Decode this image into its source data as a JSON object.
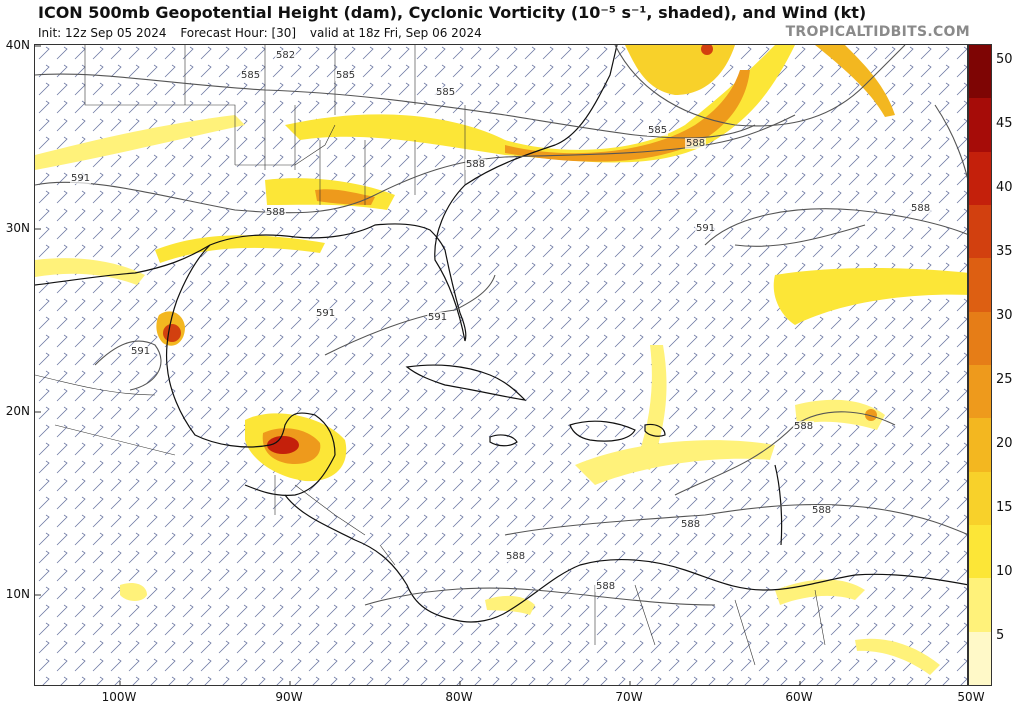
{
  "header": {
    "title": "ICON 500mb Geopotential Height (dam), Cyclonic Vorticity (10⁻⁵ s⁻¹, shaded), and Wind (kt)",
    "init": "Init: 12z Sep 05 2024",
    "forecast_hour": "Forecast Hour: [30]",
    "valid": "valid at 18z Fri, Sep 06 2024",
    "brand": "TROPICALTIDBITS.COM"
  },
  "axes": {
    "lat_labels": [
      "40N",
      "30N",
      "20N",
      "10N"
    ],
    "lon_labels": [
      "100W",
      "90W",
      "80W",
      "70W",
      "60W",
      "50W"
    ]
  },
  "colorbar": {
    "ticks": [
      "50",
      "45",
      "40",
      "35",
      "30",
      "25",
      "20",
      "15",
      "10",
      "5"
    ],
    "colors": [
      "#fff9c8",
      "#fff27a",
      "#fce637",
      "#f8d12a",
      "#f3b720",
      "#ee9a1c",
      "#e67d17",
      "#dd5f12",
      "#d2400f",
      "#c4200b",
      "#a60c08",
      "#7e0504"
    ]
  },
  "contours": {
    "labels": [
      "582",
      "585",
      "585",
      "585",
      "585",
      "588",
      "588",
      "588",
      "591",
      "591",
      "591",
      "591",
      "591",
      "588",
      "588",
      "588",
      "588",
      "588",
      "588"
    ]
  }
}
